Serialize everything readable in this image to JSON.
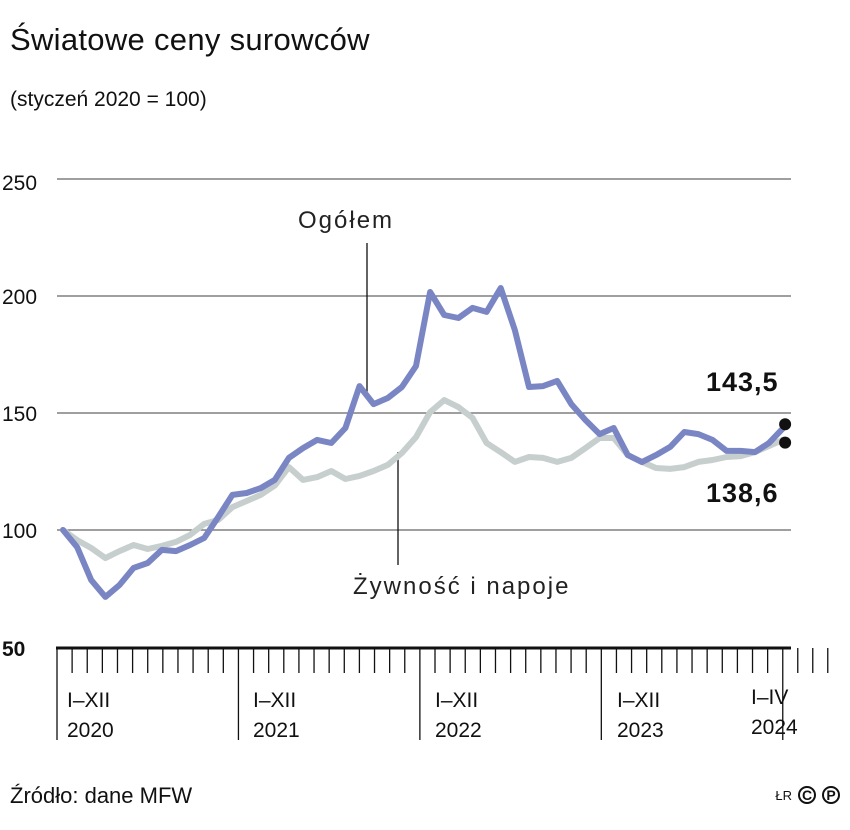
{
  "header": {
    "title": "Światowe ceny surowców",
    "subtitle": "(styczeń 2020 = 100)"
  },
  "yaxis": {
    "ticks": [
      "250",
      "200",
      "150",
      "100",
      "50"
    ]
  },
  "labels": {
    "series_total": "Ogółem",
    "series_food": "Żywność i napoje",
    "last_total": "143,5",
    "last_food": "138,6"
  },
  "xaxis": {
    "groups": [
      {
        "range": "I–XII",
        "year": "2020"
      },
      {
        "range": "I–XII",
        "year": "2021"
      },
      {
        "range": "I–XII",
        "year": "2022"
      },
      {
        "range": "I–XII",
        "year": "2023"
      },
      {
        "range": "I–IV",
        "year": "2024"
      }
    ]
  },
  "footer": {
    "source": "Źródło: dane MFW",
    "author": "ŁR",
    "copyright_symbol": "C",
    "phonogram_symbol": "P"
  },
  "colors": {
    "total": "#7a86c4",
    "food": "#c7cfce",
    "grid": "#666666",
    "axis": "#111111"
  },
  "chart_data": {
    "type": "line",
    "title": "Światowe ceny surowców",
    "subtitle": "(styczeń 2020 = 100)",
    "xlabel": "",
    "ylabel": "",
    "ylim": [
      50,
      250
    ],
    "yticks": [
      50,
      100,
      150,
      200,
      250
    ],
    "grid": true,
    "x_period": "monthly, Jan 2020 – Apr 2024",
    "x_tick_groups": [
      "I–XII 2020",
      "I–XII 2021",
      "I–XII 2022",
      "I–XII 2023",
      "I–IV 2024"
    ],
    "x": [
      "2020-01",
      "2020-02",
      "2020-03",
      "2020-04",
      "2020-05",
      "2020-06",
      "2020-07",
      "2020-08",
      "2020-09",
      "2020-10",
      "2020-11",
      "2020-12",
      "2021-01",
      "2021-02",
      "2021-03",
      "2021-04",
      "2021-05",
      "2021-06",
      "2021-07",
      "2021-08",
      "2021-09",
      "2021-10",
      "2021-11",
      "2021-12",
      "2022-01",
      "2022-02",
      "2022-03",
      "2022-04",
      "2022-05",
      "2022-06",
      "2022-07",
      "2022-08",
      "2022-09",
      "2022-10",
      "2022-11",
      "2022-12",
      "2023-01",
      "2023-02",
      "2023-03",
      "2023-04",
      "2023-05",
      "2023-06",
      "2023-07",
      "2023-08",
      "2023-09",
      "2023-10",
      "2023-11",
      "2023-12",
      "2024-01",
      "2024-02",
      "2024-03",
      "2024-04"
    ],
    "series": [
      {
        "name": "Ogółem",
        "color": "#7a86c4",
        "values": [
          100,
          92.7,
          78.6,
          71.4,
          76.5,
          83.8,
          85.9,
          91.5,
          91.0,
          93.6,
          96.6,
          105.6,
          115.0,
          115.8,
          117.9,
          121.4,
          130.8,
          135.0,
          138.5,
          137.2,
          143.6,
          161.5,
          153.8,
          156.4,
          161.1,
          170.1,
          201.7,
          191.9,
          190.6,
          194.9,
          193.2,
          203.4,
          185.5,
          161.1,
          161.5,
          163.7,
          153.8,
          147.0,
          141.0,
          143.6,
          132.0,
          129.0,
          132.0,
          135.5,
          141.9,
          141.0,
          138.5,
          133.8,
          133.8,
          133.3,
          137.2,
          143.5
        ],
        "last_label": "143,5"
      },
      {
        "name": "Żywność i napoje",
        "color": "#c7cfce",
        "values": [
          100,
          95.7,
          92.3,
          88.0,
          91.0,
          93.6,
          91.9,
          93.2,
          94.9,
          97.9,
          102.6,
          104.3,
          109.8,
          112.4,
          115.0,
          119.0,
          126.9,
          121.4,
          122.6,
          125.2,
          121.8,
          123.1,
          125.2,
          127.8,
          132.9,
          139.7,
          150.4,
          155.5,
          152.5,
          147.9,
          137.2,
          133.3,
          129.1,
          131.2,
          130.8,
          129.1,
          130.8,
          135.0,
          139.3,
          139.3,
          132.0,
          129.1,
          126.5,
          126.1,
          126.9,
          129.1,
          129.9,
          131.2,
          131.6,
          133.3,
          135.9,
          138.6
        ],
        "last_label": "138,6"
      }
    ],
    "annotations": [
      {
        "text": "Ogółem",
        "series": "Ogółem"
      },
      {
        "text": "Żywność i napoje",
        "series": "Żywność i napoje"
      },
      {
        "text": "143,5",
        "series": "Ogółem",
        "point": "2024-04"
      },
      {
        "text": "138,6",
        "series": "Żywność i napoje",
        "point": "2024-04"
      }
    ],
    "legend": "none (direct labels)"
  }
}
